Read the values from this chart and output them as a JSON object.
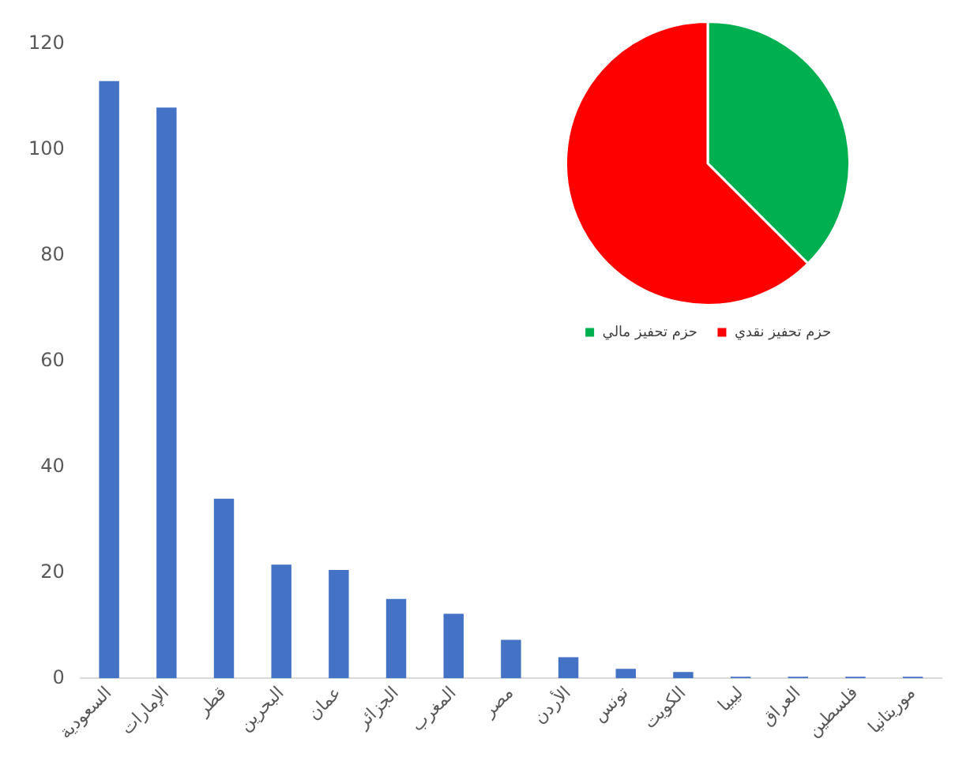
{
  "chart_data": [
    {
      "type": "bar",
      "categories": [
        "السعودية",
        "الإمارات",
        "قطر",
        "البحرين",
        "عمان",
        "الجزائر",
        "المغرب",
        "مصر",
        "الأردن",
        "تونس",
        "الكويت",
        "ليبيا",
        "العراق",
        "فلسطين",
        "موريتانيا"
      ],
      "values": [
        113,
        108,
        34,
        21.5,
        20.5,
        15,
        12.2,
        7.3,
        4,
        1.8,
        1.2,
        0.3,
        0.3,
        0.3,
        0.3
      ],
      "color": "#4472c4",
      "ylim": [
        0,
        120
      ],
      "yticks": [
        0,
        20,
        40,
        60,
        80,
        100,
        120
      ],
      "grid": false,
      "legend": false
    },
    {
      "type": "pie",
      "categories": [
        "حزم تحفيز مالي",
        "حزم تحفيز نقدي"
      ],
      "values": [
        37.5,
        62.5
      ],
      "colors": [
        "#00b050",
        "#ff0000"
      ],
      "legend": "bottom"
    }
  ]
}
